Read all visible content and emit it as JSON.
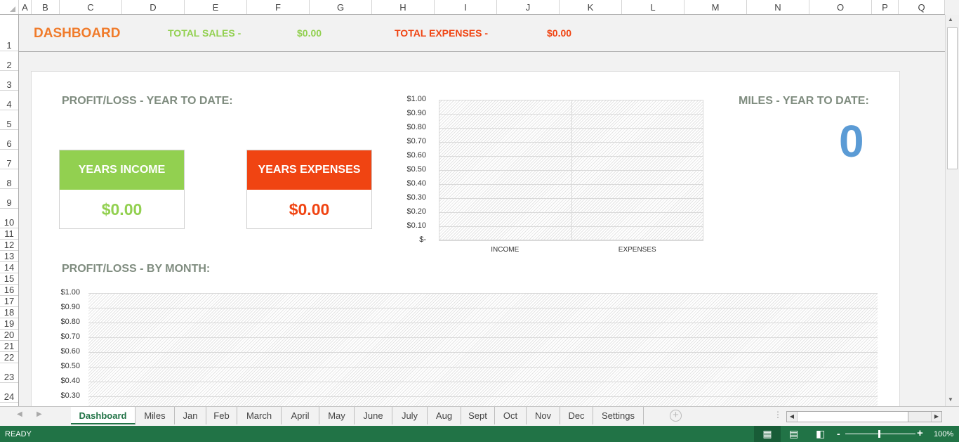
{
  "columns": [
    "A",
    "B",
    "C",
    "D",
    "E",
    "F",
    "G",
    "H",
    "I",
    "J",
    "K",
    "L",
    "M",
    "N",
    "O",
    "P",
    "Q"
  ],
  "rows": [
    "1",
    "2",
    "3",
    "4",
    "5",
    "6",
    "7",
    "8",
    "9",
    "10",
    "11",
    "12",
    "13",
    "14",
    "15",
    "16",
    "17",
    "18",
    "19",
    "20",
    "21",
    "22",
    "23",
    "24"
  ],
  "header": {
    "title": "DASHBOARD",
    "total_sales_label": "TOTAL SALES -",
    "total_sales_value": "$0.00",
    "total_expenses_label": "TOTAL EXPENSES -",
    "total_expenses_value": "$0.00"
  },
  "ytd": {
    "title": "PROFIT/LOSS - YEAR TO DATE:",
    "income_label": "YEARS INCOME",
    "income_value": "$0.00",
    "expenses_label": "YEARS EXPENSES",
    "expenses_value": "$0.00"
  },
  "miles": {
    "title": "MILES - YEAR TO DATE:",
    "value": "0"
  },
  "monthly": {
    "title": "PROFIT/LOSS - BY MONTH:"
  },
  "colors": {
    "orange": "#f07b2b",
    "green": "#92d050",
    "red": "#f04412",
    "miles_blue": "#5b9bd5",
    "excel_green": "#217346"
  },
  "chart_data": [
    {
      "type": "bar",
      "categories": [
        "INCOME",
        "EXPENSES"
      ],
      "values": [
        0,
        0
      ],
      "ylim": [
        0,
        1
      ],
      "yticks": [
        "$-",
        "$0.10",
        "$0.20",
        "$0.30",
        "$0.40",
        "$0.50",
        "$0.60",
        "$0.70",
        "$0.80",
        "$0.90",
        "$1.00"
      ],
      "grid": true
    },
    {
      "type": "bar",
      "values": [],
      "ylim": [
        0,
        1
      ],
      "yticks_visible": [
        "$1.00",
        "$0.90",
        "$0.80",
        "$0.70",
        "$0.60",
        "$0.50",
        "$0.40",
        "$0.30"
      ],
      "grid": true
    }
  ],
  "tabs": [
    "Dashboard",
    "Miles",
    "Jan",
    "Feb",
    "March",
    "April",
    "May",
    "June",
    "July",
    "Aug",
    "Sept",
    "Oct",
    "Nov",
    "Dec",
    "Settings"
  ],
  "active_tab": "Dashboard",
  "status": {
    "mode": "READY",
    "zoom": "100%"
  }
}
